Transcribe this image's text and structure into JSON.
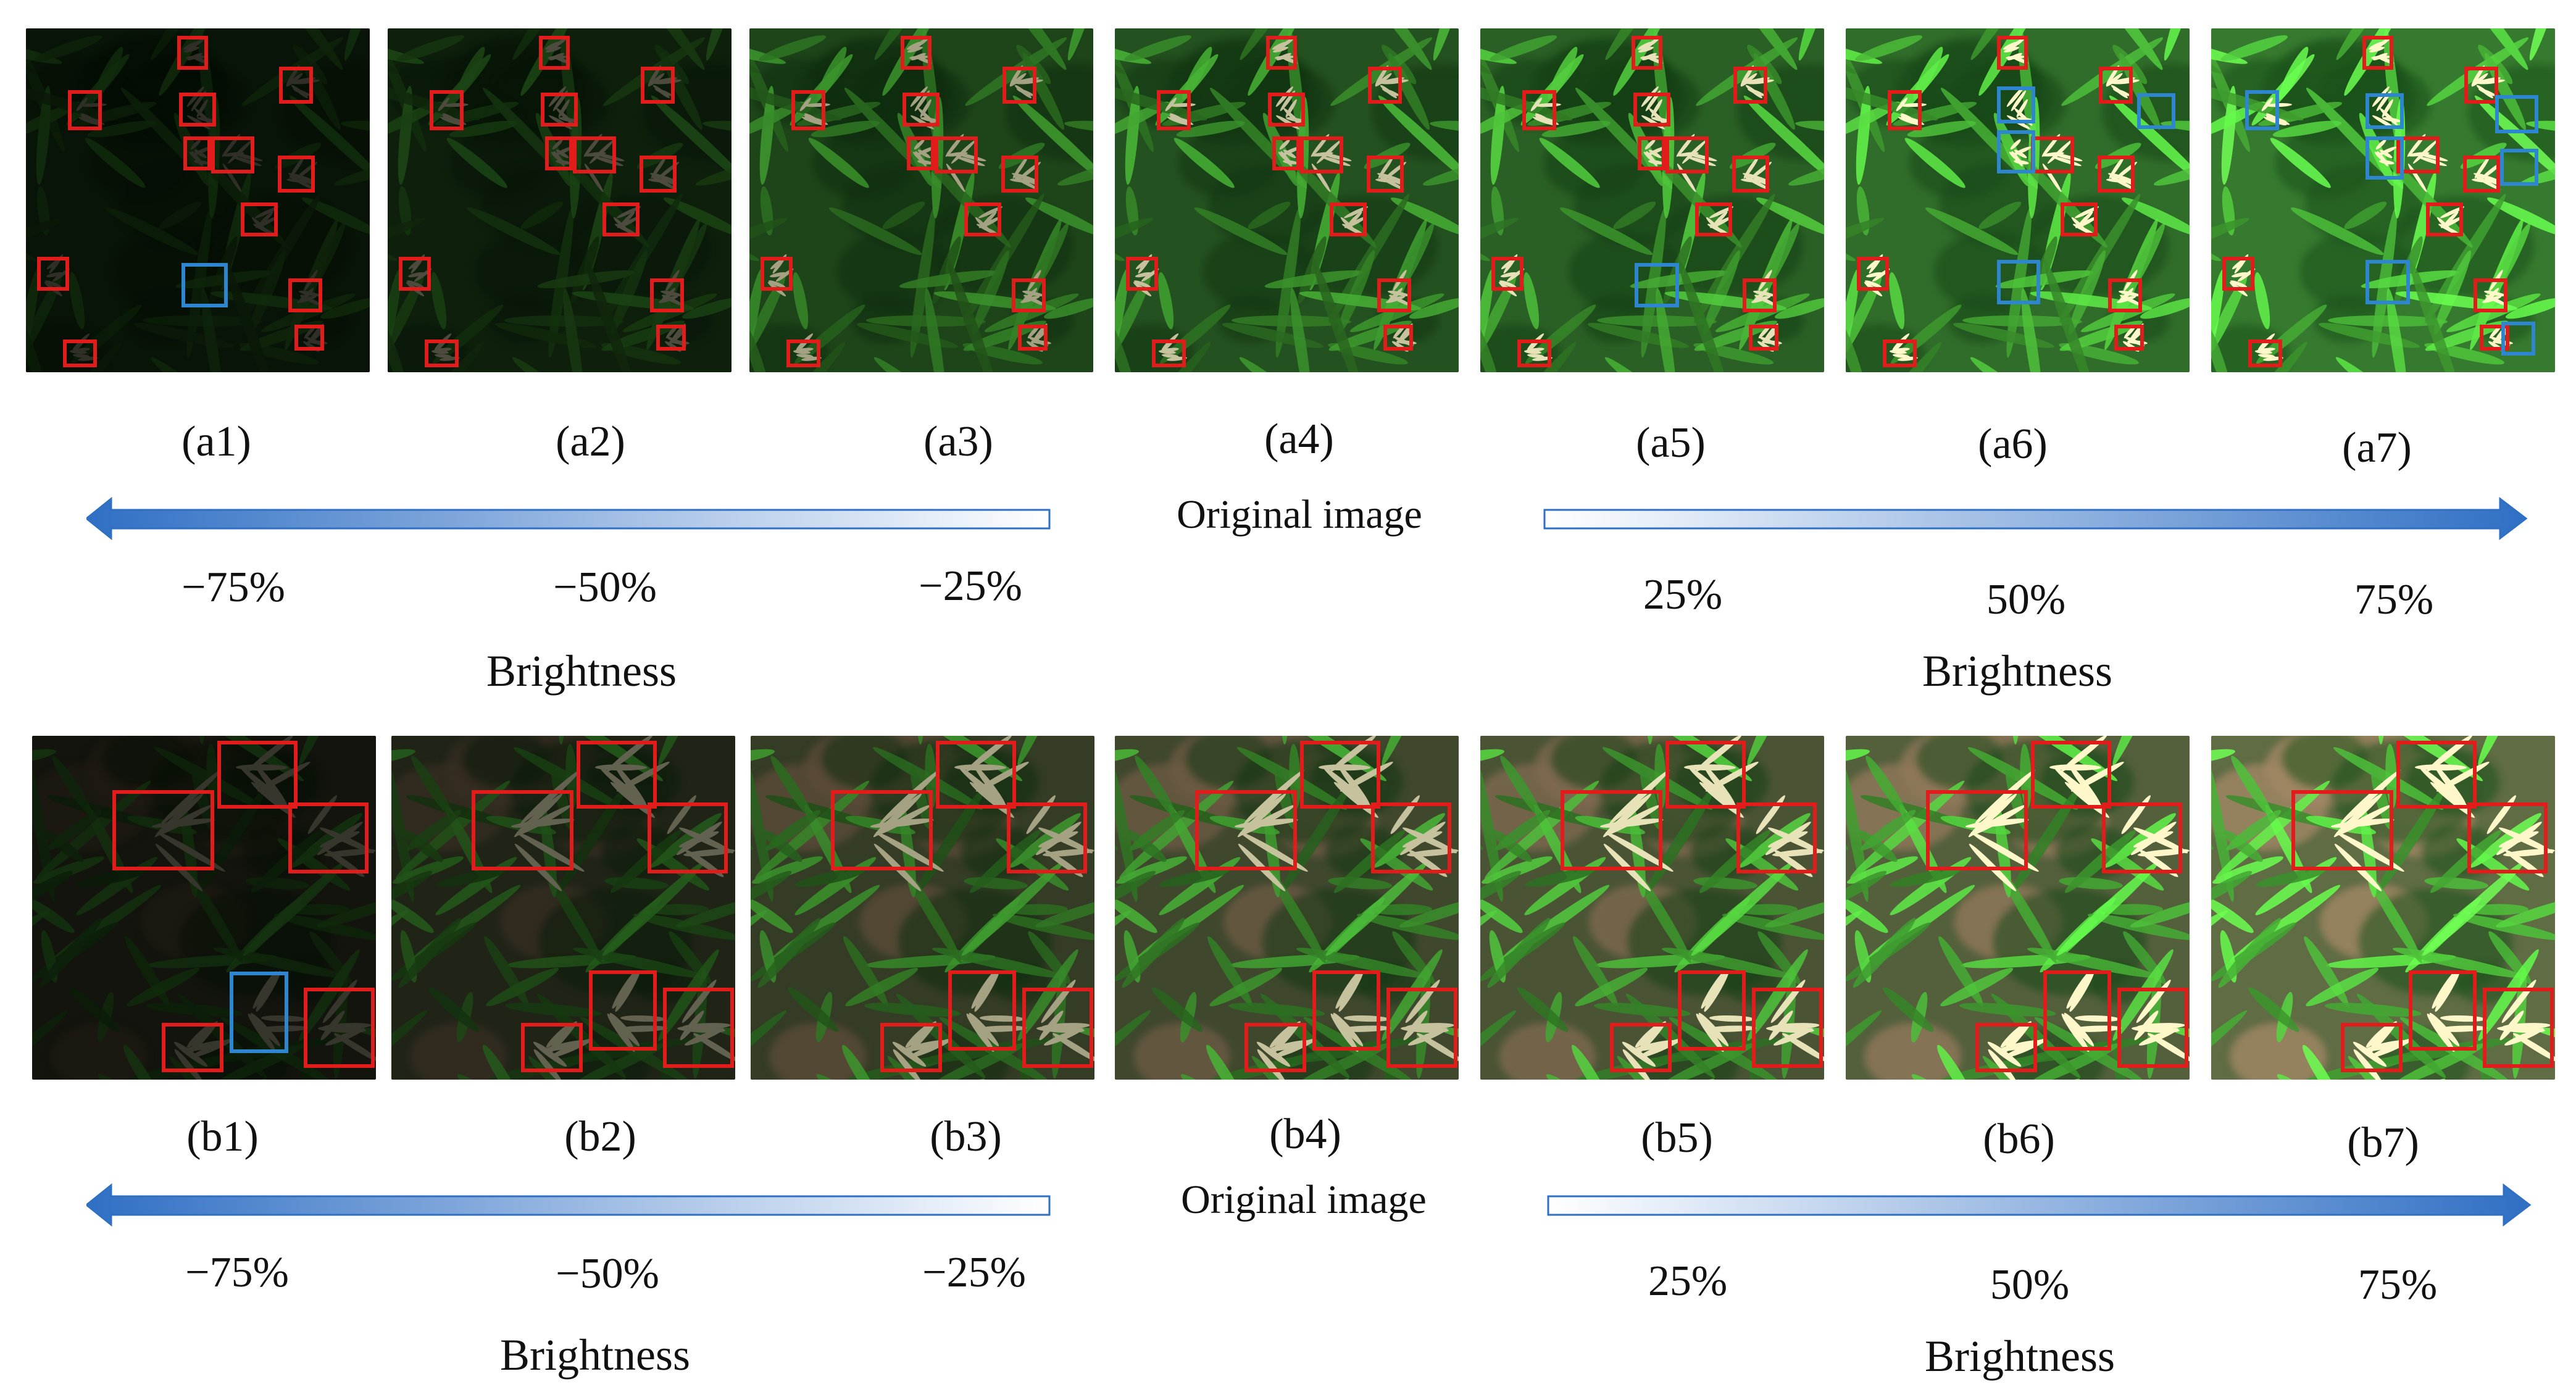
{
  "figure": {
    "rows": [
      {
        "id": "a",
        "panels": [
          {
            "label": "(a1)",
            "brightness": 0.22
          },
          {
            "label": "(a2)",
            "brightness": 0.35
          },
          {
            "label": "(a3)",
            "brightness": 0.75
          },
          {
            "label": "(a4)",
            "brightness": 0.9
          },
          {
            "label": "(a5)",
            "brightness": 1.05
          },
          {
            "label": "(a6)",
            "brightness": 1.2
          },
          {
            "label": "(a7)",
            "brightness": 1.35
          }
        ],
        "original_label": "Original image",
        "left_levels": [
          "−75%",
          "−50%",
          "−25%"
        ],
        "right_levels": [
          "25%",
          "50%",
          "75%"
        ],
        "left_axis_label": "Brightness",
        "right_axis_label": "Brightness"
      },
      {
        "id": "b",
        "panels": [
          {
            "label": "(b1)",
            "brightness": 0.25
          },
          {
            "label": "(b2)",
            "brightness": 0.45
          },
          {
            "label": "(b3)",
            "brightness": 0.75
          },
          {
            "label": "(b4)",
            "brightness": 0.9
          },
          {
            "label": "(b5)",
            "brightness": 1.05
          },
          {
            "label": "(b6)",
            "brightness": 1.2
          },
          {
            "label": "(b7)",
            "brightness": 1.35
          }
        ],
        "original_label": "Original image",
        "left_levels": [
          "−75%",
          "−50%",
          "−25%"
        ],
        "right_levels": [
          "25%",
          "50%",
          "75%"
        ],
        "left_axis_label": "Brightness",
        "right_axis_label": "Brightness"
      }
    ],
    "colors": {
      "detection_box": "#e21b1b",
      "missed_or_false_box": "#2f86d0",
      "arrow": "#2f6fc4"
    }
  }
}
